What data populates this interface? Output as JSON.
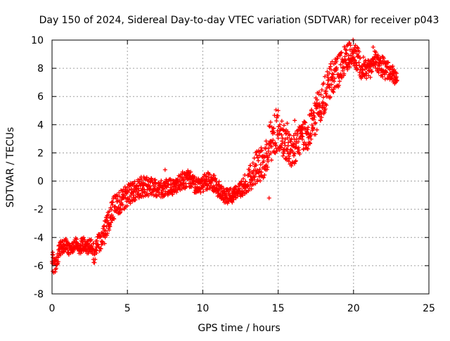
{
  "chart_data": {
    "type": "scatter",
    "title": "Day 150 of 2024, Sidereal Day-to-day VTEC variation (SDTVAR) for receiver p043",
    "xlabel": "GPS time / hours",
    "ylabel": "SDTVAR / TECUs",
    "xlim": [
      0,
      25
    ],
    "ylim": [
      -8,
      10
    ],
    "xticks": [
      0,
      5,
      10,
      15,
      20,
      25
    ],
    "yticks": [
      -8,
      -6,
      -4,
      -2,
      0,
      2,
      4,
      6,
      8,
      10
    ],
    "xtick_labels": [
      "0",
      "5",
      "10",
      "15",
      "20",
      "25"
    ],
    "ytick_labels": [
      "-8",
      "-6",
      "-4",
      "-2",
      "0",
      "2",
      "4",
      "6",
      "8",
      "10"
    ],
    "grid": true,
    "marker": "+",
    "series": [
      {
        "name": "SDTVAR",
        "color": "#ff0000",
        "trend": [
          [
            0.0,
            -5.3
          ],
          [
            0.1,
            -5.9
          ],
          [
            0.2,
            -6.1
          ],
          [
            0.4,
            -5.2
          ],
          [
            0.6,
            -4.7
          ],
          [
            0.8,
            -4.6
          ],
          [
            1.0,
            -4.5
          ],
          [
            1.2,
            -4.9
          ],
          [
            1.4,
            -4.6
          ],
          [
            1.6,
            -4.4
          ],
          [
            1.8,
            -4.8
          ],
          [
            2.0,
            -4.5
          ],
          [
            2.2,
            -4.6
          ],
          [
            2.4,
            -4.7
          ],
          [
            2.6,
            -4.6
          ],
          [
            2.8,
            -5.2
          ],
          [
            3.0,
            -4.4
          ],
          [
            3.2,
            -4.3
          ],
          [
            3.4,
            -4.0
          ],
          [
            3.6,
            -3.3
          ],
          [
            3.8,
            -2.6
          ],
          [
            4.0,
            -2.0
          ],
          [
            4.2,
            -1.7
          ],
          [
            4.4,
            -1.6
          ],
          [
            4.6,
            -1.4
          ],
          [
            4.8,
            -1.2
          ],
          [
            5.0,
            -1.0
          ],
          [
            5.5,
            -0.7
          ],
          [
            6.0,
            -0.4
          ],
          [
            6.5,
            -0.3
          ],
          [
            7.0,
            -0.6
          ],
          [
            7.5,
            -0.5
          ],
          [
            8.0,
            -0.4
          ],
          [
            8.5,
            -0.1
          ],
          [
            9.0,
            0.2
          ],
          [
            9.5,
            -0.3
          ],
          [
            10.0,
            -0.2
          ],
          [
            10.5,
            0.1
          ],
          [
            11.0,
            -0.5
          ],
          [
            11.5,
            -1.1
          ],
          [
            12.0,
            -1.0
          ],
          [
            12.5,
            -0.6
          ],
          [
            13.0,
            0.0
          ],
          [
            13.5,
            0.8
          ],
          [
            14.0,
            1.4
          ],
          [
            14.5,
            2.8
          ],
          [
            15.0,
            3.8
          ],
          [
            15.5,
            2.5
          ],
          [
            16.0,
            2.1
          ],
          [
            16.5,
            3.0
          ],
          [
            17.0,
            3.3
          ],
          [
            17.5,
            4.7
          ],
          [
            18.0,
            5.9
          ],
          [
            18.5,
            7.2
          ],
          [
            19.0,
            7.8
          ],
          [
            19.5,
            8.8
          ],
          [
            20.0,
            9.2
          ],
          [
            20.5,
            8.1
          ],
          [
            21.0,
            7.9
          ],
          [
            21.5,
            8.6
          ],
          [
            22.0,
            8.0
          ],
          [
            22.5,
            7.7
          ],
          [
            22.9,
            7.3
          ]
        ],
        "spread": [
          0.6,
          0.7,
          0.7,
          0.8,
          0.6,
          0.5,
          0.6,
          0.6,
          0.5,
          0.6,
          0.6,
          0.7,
          0.6,
          0.6,
          0.7,
          0.8,
          0.7,
          0.8,
          0.9,
          1.1,
          1.2,
          1.2,
          1.0,
          0.9,
          0.9,
          0.9,
          0.9,
          0.8,
          0.9,
          0.9,
          0.7,
          0.7,
          0.7,
          0.8,
          0.8,
          0.7,
          0.7,
          0.8,
          0.7,
          0.6,
          0.6,
          0.7,
          0.9,
          1.4,
          1.6,
          1.9,
          1.8,
          1.4,
          1.3,
          1.3,
          1.4,
          1.6,
          1.5,
          1.4,
          1.3,
          1.2,
          1.1,
          1.0,
          0.9,
          0.9,
          0.9,
          0.8,
          0.6
        ],
        "outliers": [
          [
            7.5,
            0.8
          ],
          [
            14.4,
            -1.2
          ],
          [
            15.0,
            5.0
          ],
          [
            15.6,
            4.1
          ],
          [
            16.1,
            4.3
          ],
          [
            17.2,
            4.8
          ],
          [
            19.7,
            9.8
          ],
          [
            21.3,
            9.5
          ],
          [
            22.8,
            7.0
          ],
          [
            0.05,
            -6.4
          ]
        ]
      }
    ]
  }
}
